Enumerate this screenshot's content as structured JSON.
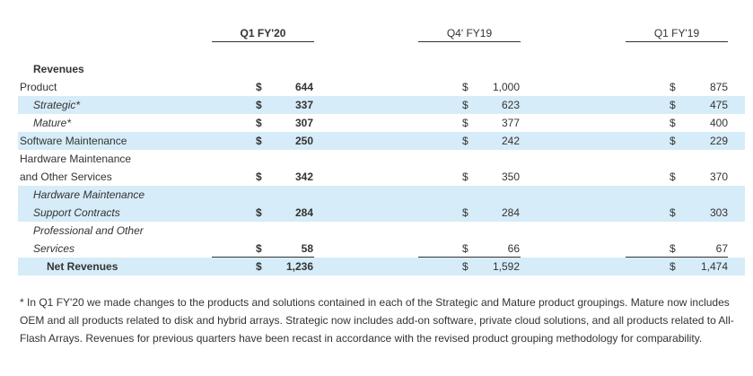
{
  "table": {
    "columns": [
      "Q1 FY'20",
      "Q4' FY19",
      "Q1 FY'19"
    ],
    "section": "Revenues",
    "currency": "$",
    "rows": [
      {
        "label": [
          "Product"
        ],
        "values": [
          "644",
          "1,000",
          "875"
        ]
      },
      {
        "label": [
          "Strategic*"
        ],
        "values": [
          "337",
          "623",
          "475"
        ]
      },
      {
        "label": [
          "Mature*"
        ],
        "values": [
          "307",
          "377",
          "400"
        ]
      },
      {
        "label": [
          "Software Maintenance"
        ],
        "values": [
          "250",
          "242",
          "229"
        ]
      },
      {
        "label": [
          "Hardware Maintenance",
          "and Other Services"
        ],
        "values": [
          "342",
          "350",
          "370"
        ]
      },
      {
        "label": [
          "Hardware Maintenance",
          "Support Contracts"
        ],
        "values": [
          "284",
          "284",
          "303"
        ]
      },
      {
        "label": [
          "Professional and Other",
          "Services"
        ],
        "values": [
          "58",
          "66",
          "67"
        ]
      },
      {
        "label": [
          "Net Revenues"
        ],
        "values": [
          "1,236",
          "1,592",
          "1,474"
        ]
      }
    ]
  },
  "footnote": "* In Q1 FY'20 we made changes to the products and solutions contained in each of the Strategic and Mature product groupings. Mature now includes OEM and all products related to disk and hybrid arrays. Strategic now includes add-on software, private cloud solutions, and all products related to All-Flash Arrays. Revenues for previous quarters have been recast in accordance with the revised product grouping methodology for comparability."
}
